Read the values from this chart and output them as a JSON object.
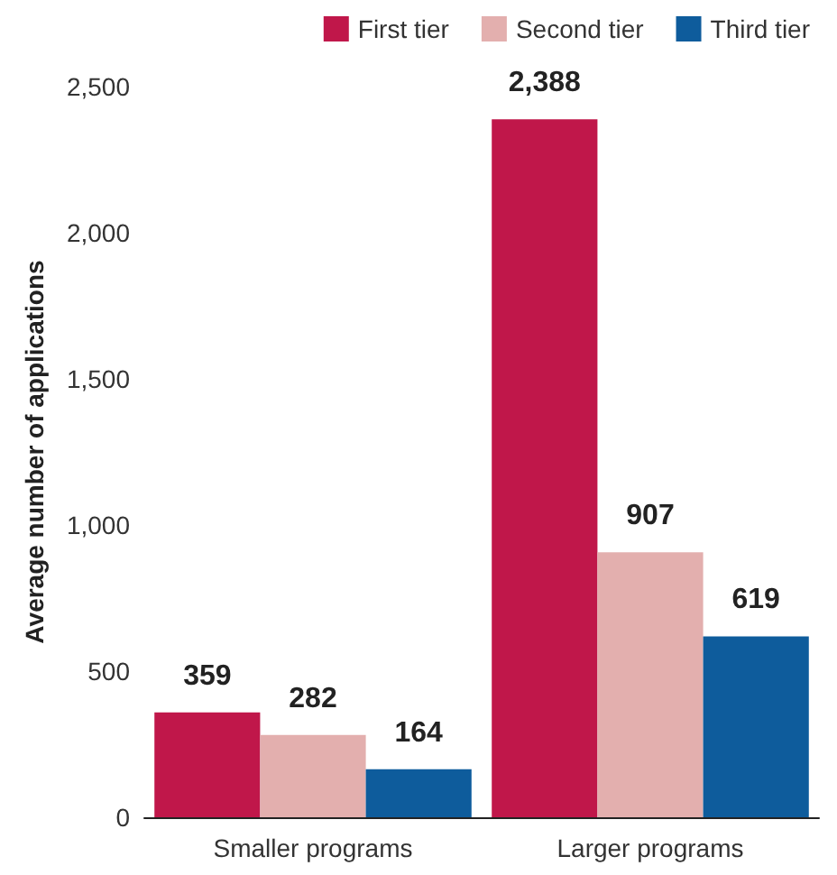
{
  "chart_data": {
    "type": "bar",
    "ylabel": "Average number of applications",
    "categories": [
      "Smaller programs",
      "Larger programs"
    ],
    "series": [
      {
        "name": "First tier",
        "color": "#c0174a",
        "values": [
          359,
          2388
        ],
        "value_labels": [
          "359",
          "2,388"
        ]
      },
      {
        "name": "Second tier",
        "color": "#e3afae",
        "values": [
          282,
          907
        ],
        "value_labels": [
          "282",
          "907"
        ]
      },
      {
        "name": "Third tier",
        "color": "#0e5c9c",
        "values": [
          164,
          619
        ],
        "value_labels": [
          "164",
          "619"
        ]
      }
    ],
    "ylim": [
      0,
      2500
    ],
    "yticks": [
      {
        "value": 0,
        "label": "0"
      },
      {
        "value": 500,
        "label": "500"
      },
      {
        "value": 1000,
        "label": "1,000"
      },
      {
        "value": 1500,
        "label": "1,500"
      },
      {
        "value": 2000,
        "label": "2,000"
      },
      {
        "value": 2500,
        "label": "2,500"
      }
    ],
    "grid": false,
    "legend": "top right"
  }
}
